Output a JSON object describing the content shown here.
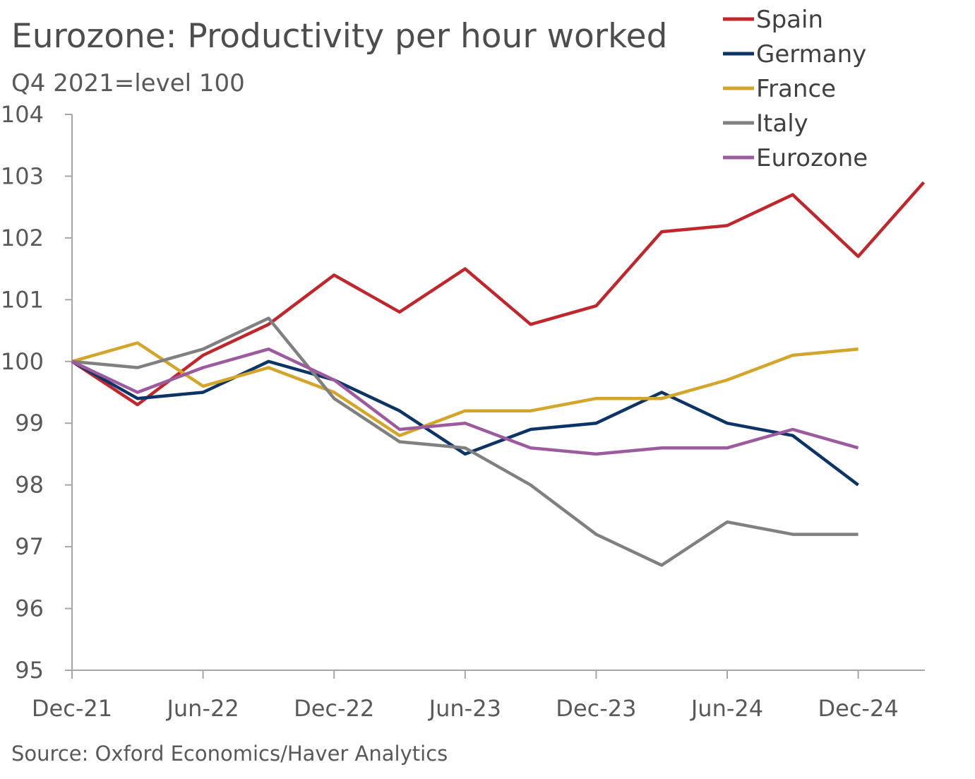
{
  "title": "Eurozone: Productivity per hour worked",
  "subtitle": "Q4 2021=level 100",
  "source": "Source: Oxford Economics/Haver Analytics",
  "chart_data": {
    "type": "line",
    "title": "Eurozone: Productivity per hour worked",
    "subtitle": "Q4 2021=level 100",
    "x": [
      "Dec-21",
      "Mar-22",
      "Jun-22",
      "Sep-22",
      "Dec-22",
      "Mar-23",
      "Jun-23",
      "Sep-23",
      "Dec-23",
      "Mar-24",
      "Jun-24",
      "Sep-24",
      "Dec-24",
      "Mar-25"
    ],
    "x_tick_labels": [
      "Dec-21",
      "Jun-22",
      "Dec-22",
      "Jun-23",
      "Dec-23",
      "Jun-24",
      "Dec-24"
    ],
    "xlabel": "",
    "ylabel": "",
    "ylim": [
      95,
      104
    ],
    "y_ticks": [
      95,
      96,
      97,
      98,
      99,
      100,
      101,
      102,
      103,
      104
    ],
    "grid": false,
    "legend": "top-right",
    "series": [
      {
        "name": "Spain",
        "color": "#c0272d",
        "values": [
          100,
          99.3,
          100.1,
          100.6,
          101.4,
          100.8,
          101.5,
          100.6,
          100.9,
          102.1,
          102.2,
          102.7,
          101.7,
          102.9
        ]
      },
      {
        "name": "Germany",
        "color": "#0d3466",
        "values": [
          100,
          99.4,
          99.5,
          100.0,
          99.7,
          99.2,
          98.5,
          98.9,
          99.0,
          99.5,
          99.0,
          98.8,
          98.0,
          null
        ]
      },
      {
        "name": "France",
        "color": "#d4a52a",
        "values": [
          100,
          100.3,
          99.6,
          99.9,
          99.5,
          98.8,
          99.2,
          99.2,
          99.4,
          99.4,
          99.7,
          100.1,
          100.2,
          null
        ]
      },
      {
        "name": "Italy",
        "color": "#808080",
        "values": [
          100,
          99.9,
          100.2,
          100.7,
          99.4,
          98.7,
          98.6,
          98.0,
          97.2,
          96.7,
          97.4,
          97.2,
          97.2,
          null
        ]
      },
      {
        "name": "Eurozone",
        "color": "#9c5b9e",
        "values": [
          100,
          99.5,
          99.9,
          100.2,
          99.7,
          98.9,
          99.0,
          98.6,
          98.5,
          98.6,
          98.6,
          98.9,
          98.6,
          null
        ]
      }
    ]
  }
}
